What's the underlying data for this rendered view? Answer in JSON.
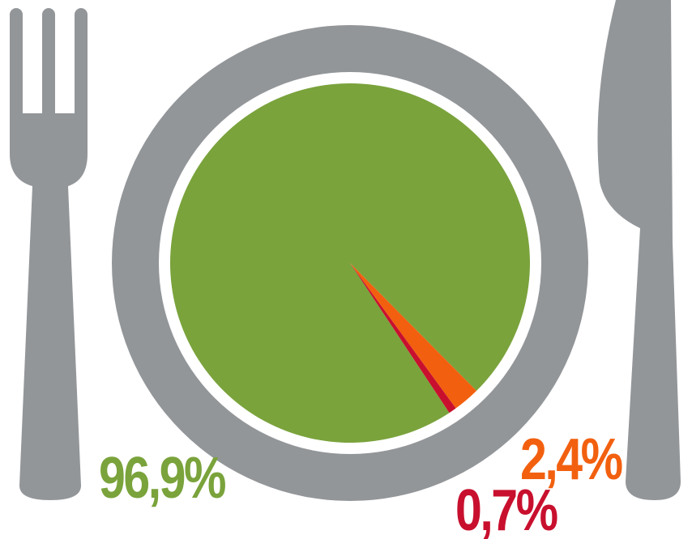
{
  "chart_data": {
    "type": "pie",
    "categories": [
      null,
      null,
      null
    ],
    "values": [
      96.9,
      2.4,
      0.7
    ],
    "value_labels": [
      "96,9%",
      "2,4%",
      "0,7%"
    ],
    "colors": [
      "#7aa33c",
      "#f2600f",
      "#c8102e"
    ]
  }
}
